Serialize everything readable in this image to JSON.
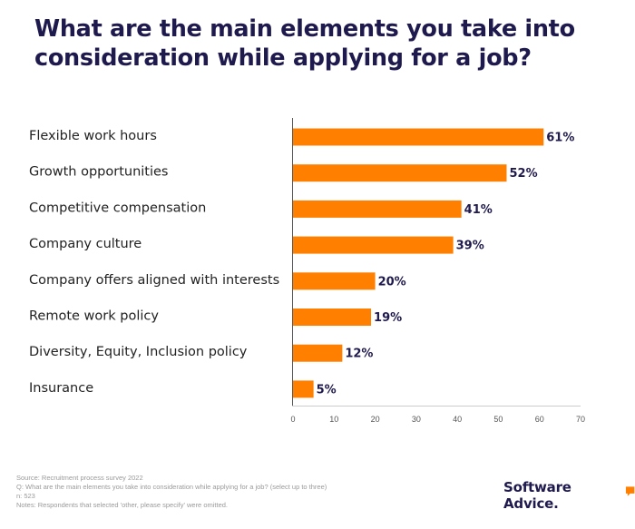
{
  "title": "What are the main elements you take into consideration while applying for a job?",
  "chart_data": {
    "type": "bar",
    "orientation": "horizontal",
    "categories": [
      "Flexible work hours",
      "Growth opportunities",
      "Competitive compensation",
      "Company culture",
      "Company offers aligned with interests",
      "Remote work policy",
      "Diversity, Equity, Inclusion policy",
      "Insurance"
    ],
    "values": [
      61,
      52,
      41,
      39,
      20,
      19,
      12,
      5
    ],
    "value_labels": [
      "61%",
      "52%",
      "41%",
      "39%",
      "20%",
      "19%",
      "12%",
      "5%"
    ],
    "xlim": [
      0,
      70
    ],
    "xticks": [
      0,
      10,
      20,
      30,
      40,
      50,
      60,
      70
    ],
    "bar_color": "#ff8000",
    "grid": false,
    "legend": "none"
  },
  "footnotes": {
    "source": "Source: Recruitment process survey 2022",
    "question": "Q: What are the main elements you take into consideration while applying for a job? (select up to three)",
    "n": "n: 523",
    "notes": "Notes: Respondents that selected 'other, please specify' were omitted."
  },
  "brand": {
    "name": "Software Advice.",
    "colors": {
      "text": "#1f1a4d",
      "mark": "#ff8000"
    },
    "icon": "speech-bubble-icon"
  }
}
